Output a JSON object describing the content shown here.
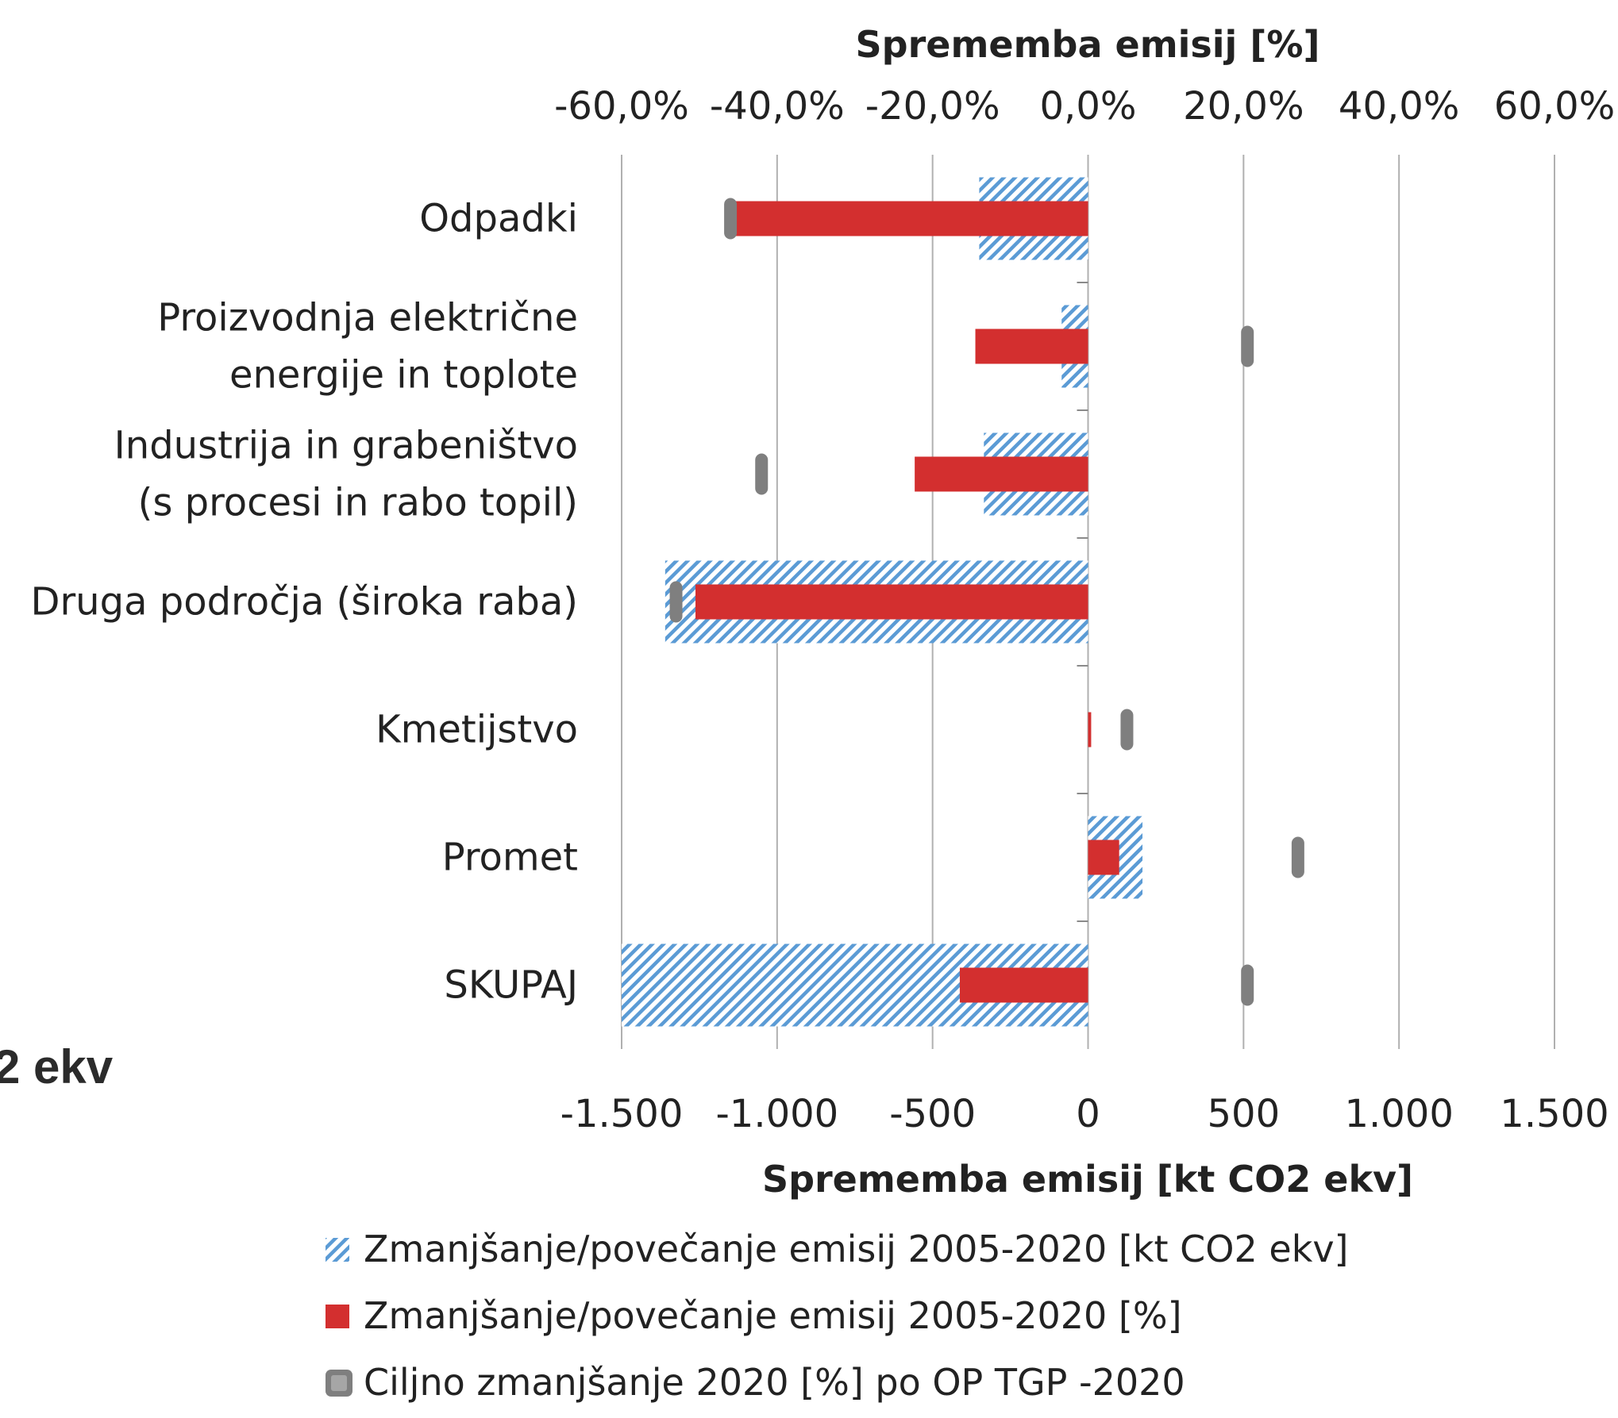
{
  "side_fragment": "2 ekv",
  "chart_data": {
    "type": "bar",
    "orientation": "horizontal",
    "categories": [
      [
        "Odpadki"
      ],
      [
        "Proizvodnja električne",
        "energije in toplote"
      ],
      [
        "Industrija in grabeništvo",
        "(s procesi in rabo topil)"
      ],
      [
        "Druga področja (široka raba)"
      ],
      [
        "Kmetijstvo"
      ],
      [
        "Promet"
      ],
      [
        "SKUPAJ"
      ]
    ],
    "top_axis": {
      "title": "Sprememba emisij [%]",
      "ticks": [
        "-60,0%",
        "-40,0%",
        "-20,0%",
        "0,0%",
        "20,0%",
        "40,0%",
        "60,0%"
      ],
      "range": [
        -60,
        60
      ]
    },
    "bottom_axis": {
      "title": "Sprememba emisij [kt CO2 ekv]",
      "ticks": [
        "-1.500",
        "-1.000",
        "-500",
        "0",
        "500",
        "1.000",
        "1.500"
      ],
      "range": [
        -1500,
        1500
      ]
    },
    "grid": true,
    "series": [
      {
        "name": "Zmanjšanje/povečanje emisij 2005-2020 [kt CO2 ekv]",
        "axis": "bottom",
        "style": "hatched",
        "color": "#5b9bd5",
        "values": [
          -350,
          -85,
          -335,
          -1360,
          0,
          175,
          -1500
        ]
      },
      {
        "name": "Zmanjšanje/povečanje emisij 2005-2020 [%]",
        "axis": "top",
        "style": "solid",
        "color": "#d32f2f",
        "values": [
          -45.5,
          -14.5,
          -22.3,
          -50.5,
          0.4,
          4.0,
          -16.5
        ]
      },
      {
        "name": "Ciljno zmanjšanje 2020 [%] po OP TGP -2020",
        "axis": "top",
        "style": "marker",
        "color": "#7f7f7f",
        "values": [
          -46,
          20.5,
          -42,
          -53,
          5,
          27,
          20.5
        ]
      }
    ],
    "legend_position": "bottom"
  }
}
